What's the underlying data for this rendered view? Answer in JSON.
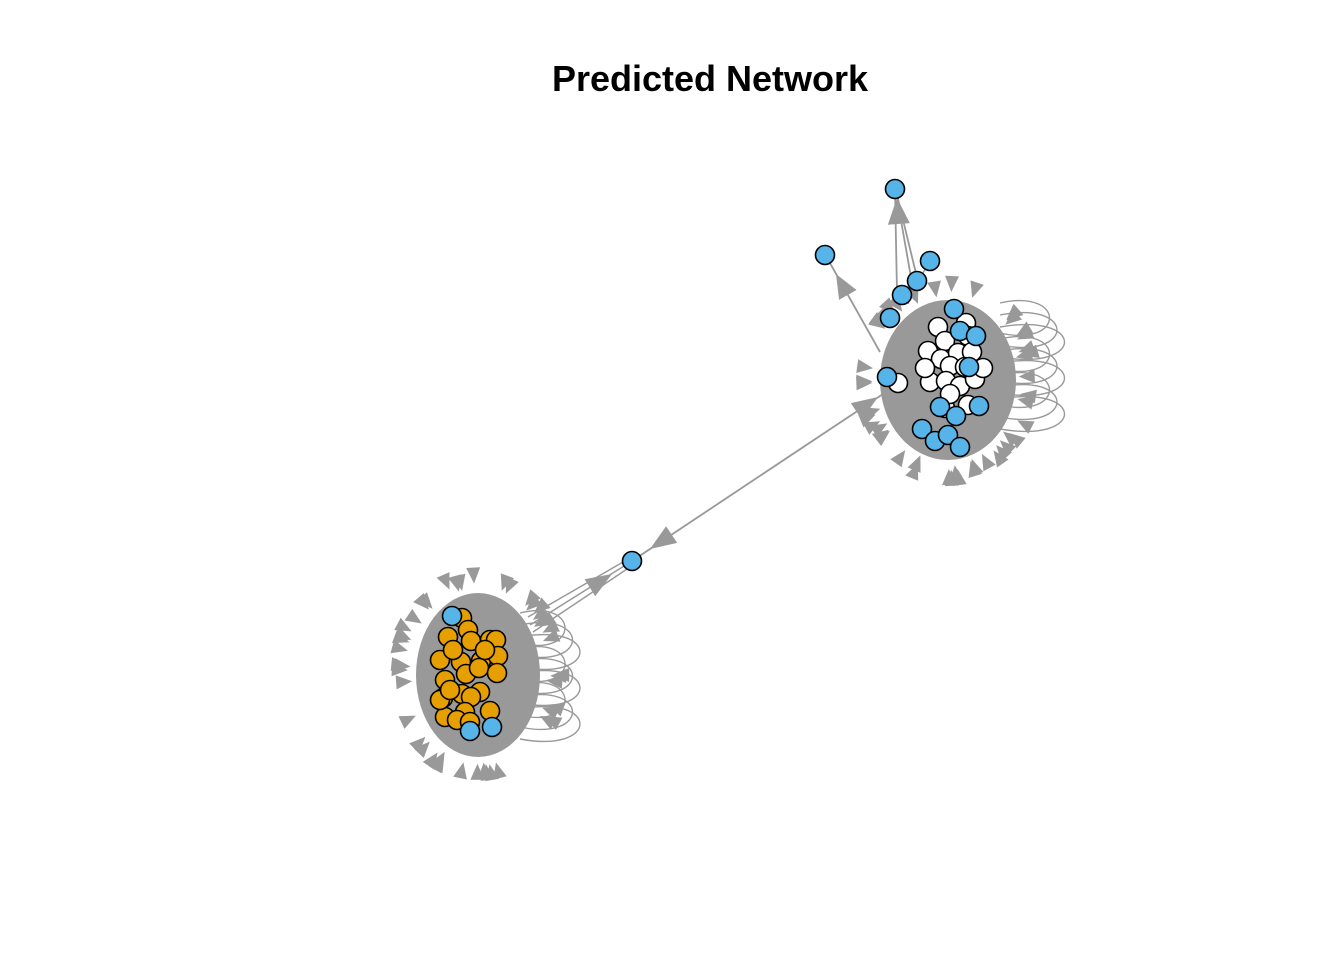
{
  "title": "Predicted Network",
  "colors": {
    "edge": "#999999",
    "node_stroke": "#000000",
    "node_blue": "#56B4E9",
    "node_orange": "#E69F00",
    "node_white": "#FFFFFF"
  }
}
